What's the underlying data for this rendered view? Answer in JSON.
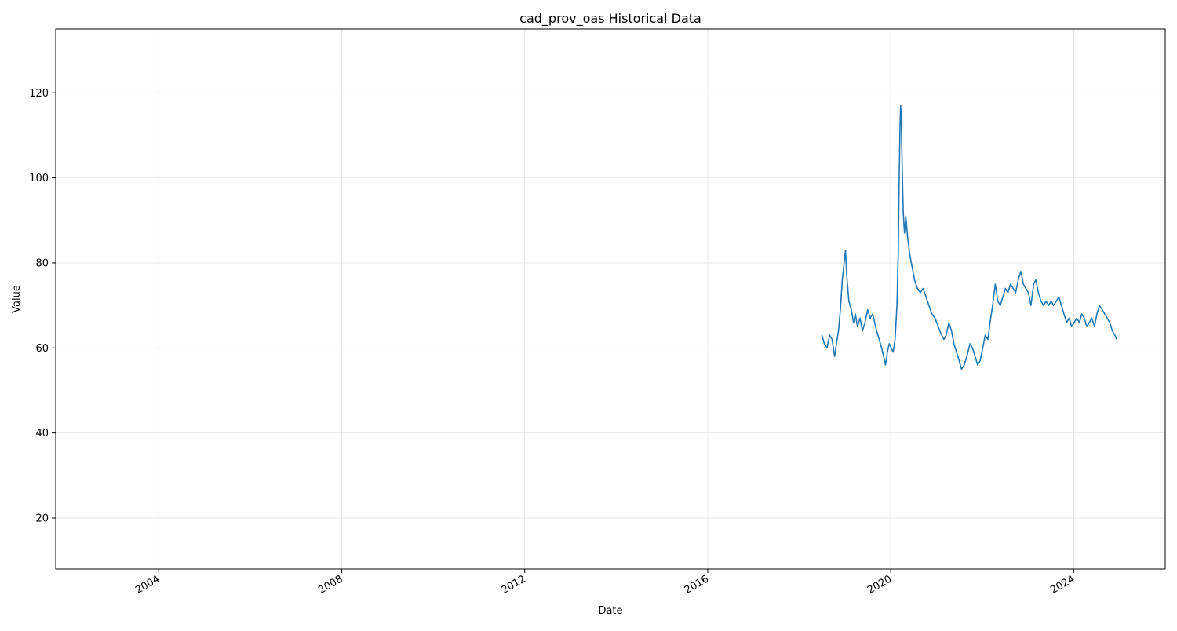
{
  "chart_data": {
    "type": "line",
    "title": "cad_prov_oas Historical Data",
    "xlabel": "Date",
    "ylabel": "Value",
    "x_tick_labels": [
      "2004",
      "2008",
      "2012",
      "2016",
      "2020",
      "2024"
    ],
    "y_tick_labels": [
      "20",
      "40",
      "60",
      "80",
      "100",
      "120"
    ],
    "xlim": [
      "2001-10-01",
      "2026-01-01"
    ],
    "ylim": [
      8,
      135
    ],
    "grid": true,
    "line_color": "#1f77b4",
    "series": [
      {
        "x": [
          "2018-07-01",
          "2018-07-20",
          "2018-08-10",
          "2018-09-01",
          "2018-09-20",
          "2018-10-10",
          "2018-10-25",
          "2018-11-10",
          "2018-11-25",
          "2018-12-10",
          "2018-12-25",
          "2019-01-05",
          "2019-01-15",
          "2019-02-01",
          "2019-02-20",
          "2019-03-10",
          "2019-03-25",
          "2019-04-10",
          "2019-05-01",
          "2019-05-20",
          "2019-06-10",
          "2019-07-01",
          "2019-07-20",
          "2019-08-10",
          "2019-08-25",
          "2019-09-10",
          "2019-10-01",
          "2019-10-20",
          "2019-11-05",
          "2019-11-20",
          "2019-12-05",
          "2019-12-20",
          "2020-01-05",
          "2020-01-20",
          "2020-02-05",
          "2020-02-20",
          "2020-03-01",
          "2020-03-08",
          "2020-03-15",
          "2020-03-20",
          "2020-03-25",
          "2020-04-01",
          "2020-04-10",
          "2020-04-20",
          "2020-05-01",
          "2020-05-15",
          "2020-06-01",
          "2020-06-20",
          "2020-07-10",
          "2020-08-01",
          "2020-08-25",
          "2020-09-15",
          "2020-10-10",
          "2020-11-01",
          "2020-11-25",
          "2020-12-20",
          "2021-01-15",
          "2021-02-10",
          "2021-03-01",
          "2021-03-20",
          "2021-04-10",
          "2021-05-01",
          "2021-05-20",
          "2021-06-10",
          "2021-07-01",
          "2021-07-20",
          "2021-08-10",
          "2021-09-01",
          "2021-09-25",
          "2021-10-15",
          "2021-11-05",
          "2021-11-25",
          "2021-12-15",
          "2022-01-05",
          "2022-01-25",
          "2022-02-15",
          "2022-03-05",
          "2022-03-25",
          "2022-04-15",
          "2022-05-05",
          "2022-05-25",
          "2022-06-15",
          "2022-07-05",
          "2022-07-25",
          "2022-08-15",
          "2022-09-05",
          "2022-09-25",
          "2022-10-15",
          "2022-11-05",
          "2022-11-25",
          "2022-12-15",
          "2023-01-05",
          "2023-01-25",
          "2023-02-15",
          "2023-03-05",
          "2023-03-25",
          "2023-04-15",
          "2023-05-05",
          "2023-05-25",
          "2023-06-15",
          "2023-07-05",
          "2023-07-25",
          "2023-08-15",
          "2023-09-05",
          "2023-09-25",
          "2023-10-15",
          "2023-11-05",
          "2023-11-25",
          "2023-12-15",
          "2024-01-05",
          "2024-01-25",
          "2024-02-15",
          "2024-03-05",
          "2024-03-25",
          "2024-04-15",
          "2024-05-05",
          "2024-05-25",
          "2024-06-15",
          "2024-07-05",
          "2024-07-25",
          "2024-08-15",
          "2024-09-05",
          "2024-09-25",
          "2024-10-15",
          "2024-11-05",
          "2024-11-25",
          "2024-12-10"
        ],
        "y": [
          63,
          61,
          60,
          63,
          62,
          58,
          61,
          64,
          69,
          76,
          80,
          83,
          77,
          71,
          69,
          66,
          68,
          65,
          67,
          64,
          66,
          69,
          67,
          68,
          66,
          64,
          62,
          60,
          58,
          56,
          59,
          61,
          60,
          59,
          62,
          70,
          82,
          98,
          112,
          117,
          114,
          103,
          92,
          87,
          91,
          86,
          82,
          79,
          76,
          74,
          73,
          74,
          72,
          70,
          68,
          67,
          65,
          63,
          62,
          63,
          66,
          64,
          61,
          59,
          57,
          55,
          56,
          58,
          61,
          60,
          58,
          56,
          57,
          60,
          63,
          62,
          66,
          70,
          75,
          71,
          70,
          72,
          74,
          73,
          75,
          74,
          73,
          76,
          78,
          75,
          74,
          73,
          70,
          75,
          76,
          73,
          71,
          70,
          71,
          70,
          71,
          70,
          71,
          72,
          70,
          68,
          66,
          67,
          65,
          66,
          67,
          66,
          68,
          67,
          65,
          66,
          67,
          65,
          68,
          70,
          69,
          68,
          67,
          66,
          64,
          63,
          62
        ]
      }
    ]
  }
}
